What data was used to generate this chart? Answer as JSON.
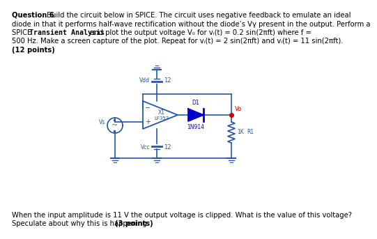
{
  "bg_color": "#ffffff",
  "text_color": "#000000",
  "circuit_color": "#2255aa",
  "diode_color": "#0000cc",
  "dot_color": "#cc0000",
  "vo_color": "#cc0000",
  "vdd_label": "Vdd",
  "vdd_value": "12",
  "vcc_label": "Vcc",
  "vcc_value": "12",
  "vs_label": "Vs",
  "x1_label": "X1",
  "opamp_name": "LF353",
  "diode_label": "D1",
  "diode_name": "1N914",
  "r1_label": "R1",
  "r1_value": "1K",
  "vo_label": "Vo",
  "line1_bold": "Question 6",
  "line1_rest": " Build the circuit below in SPICE. The circuit uses negative feedback to emulate an ideal",
  "line2": "diode in that it performs half-wave rectification without the diode’s Vγ present in the output. Perform a",
  "line3a": "SPICE ",
  "line3b": "Transient Analysis",
  "line3c": " and plot the output voltage V₀ for vᵢ(t) = 0.2 sin(2πft) where f =",
  "line4": "500 Hz. Make a screen capture of the plot. Repeat for vᵢ(t) = 2 sin(2πft) and vᵢ(t) = 11 sin(2πft).",
  "line5": "(12 points)",
  "bot1": "When the input amplitude is 11 V the output voltage is clipped. What is the value of this voltage?",
  "bot2a": "Speculate about why this is happening. ",
  "bot2b": "(3 points)"
}
